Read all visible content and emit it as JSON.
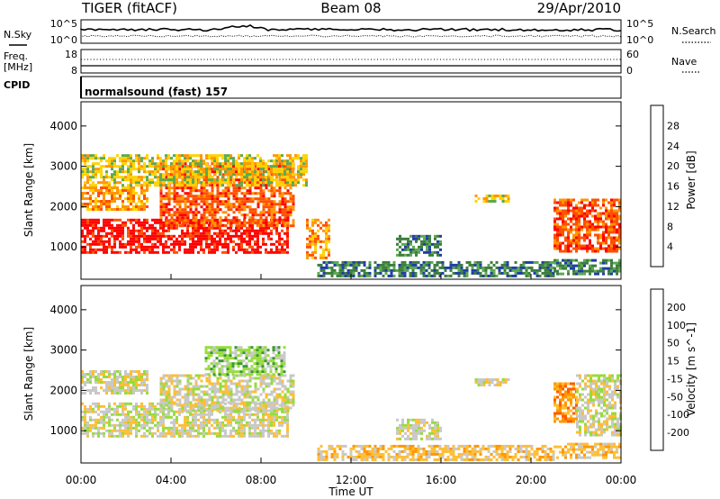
{
  "header": {
    "radar": "TIGER (fitACF)",
    "beam": "Beam 08",
    "date": "29/Apr/2010"
  },
  "summary_panels": {
    "nsky_label": "N.Sky",
    "nsearch_label": "N.Search",
    "nsky_ticks": [
      "10^5",
      "10^0"
    ],
    "nsearch_ticks": [
      "10^5",
      "10^0"
    ],
    "freq_label": "Freq.",
    "freq_unit": "[MHz]",
    "freq_ticks": [
      "18",
      "8"
    ],
    "nave_label": "Nave",
    "nave_ticks": [
      "60",
      "0"
    ],
    "cpid_label": "CPID",
    "cpid_value": "normalsound (fast) 157"
  },
  "chart_data": [
    {
      "type": "heatmap",
      "parameter": "power",
      "ylabel": "Slant Range [km]",
      "yticks": [
        1000,
        2000,
        3000,
        4000
      ],
      "ylim": [
        200,
        4600
      ],
      "xlim": [
        0,
        24
      ],
      "colorbar_label": "Power [dB]",
      "colorbar_ticks": [
        "28",
        "24",
        "20",
        "16",
        "12",
        "8",
        "4"
      ],
      "colorbar_colors": [
        "#0000ff",
        "#1e3ca8",
        "#3c7d3c",
        "#5aaa50",
        "#ffd200",
        "#ff9600",
        "#ff5000",
        "#ff0000"
      ],
      "regions": [
        {
          "t0": 0.0,
          "t1": 9.2,
          "r0": 850,
          "r1": 1700,
          "level": 7
        },
        {
          "t0": 0.0,
          "t1": 3.0,
          "r0": 1900,
          "r1": 2500,
          "level": 5
        },
        {
          "t0": 3.5,
          "t1": 9.5,
          "r0": 1500,
          "r1": 3100,
          "level": 6
        },
        {
          "t0": 0.0,
          "t1": 10.0,
          "r0": 2500,
          "r1": 3300,
          "level": 4
        },
        {
          "t0": 10.0,
          "t1": 11.0,
          "r0": 700,
          "r1": 1700,
          "level": 5
        },
        {
          "t0": 10.5,
          "t1": 21.0,
          "r0": 300,
          "r1": 650,
          "level": 2
        },
        {
          "t0": 14.0,
          "t1": 16.0,
          "r0": 800,
          "r1": 1300,
          "level": 2
        },
        {
          "t0": 17.5,
          "t1": 19.0,
          "r0": 2150,
          "r1": 2300,
          "level": 4
        },
        {
          "t0": 21.0,
          "t1": 24.0,
          "r0": 900,
          "r1": 2200,
          "level": 6
        },
        {
          "t0": 21.0,
          "t1": 24.0,
          "r0": 300,
          "r1": 700,
          "level": 2
        }
      ]
    },
    {
      "type": "heatmap",
      "parameter": "velocity",
      "xlabel": "Time UT",
      "ylabel": "Slant Range [km]",
      "xticks": [
        "00:00",
        "04:00",
        "08:00",
        "12:00",
        "16:00",
        "20:00",
        "00:00"
      ],
      "yticks": [
        1000,
        2000,
        3000,
        4000
      ],
      "ylim": [
        200,
        4600
      ],
      "xlim": [
        0,
        24
      ],
      "colorbar_label": "Velocity [m s^-1]",
      "colorbar_ticks": [
        "200",
        "100",
        "50",
        "15",
        "-15",
        "-50",
        "-100",
        "-200"
      ],
      "colorbar_colors": [
        "#ff0000",
        "#ff5a00",
        "#ff9600",
        "#ffbe32",
        "#c8c8c8",
        "#96dc3c",
        "#3c9632",
        "#1e6ea0",
        "#0000ff"
      ],
      "regions": [
        {
          "t0": 0.0,
          "t1": 9.2,
          "r0": 850,
          "r1": 1700,
          "level": 4
        },
        {
          "t0": 0.0,
          "t1": 3.0,
          "r0": 1900,
          "r1": 2500,
          "level": 4
        },
        {
          "t0": 3.5,
          "t1": 9.5,
          "r0": 1500,
          "r1": 2400,
          "level": 4
        },
        {
          "t0": 5.5,
          "t1": 9.0,
          "r0": 2400,
          "r1": 3100,
          "level": 5
        },
        {
          "t0": 10.5,
          "t1": 21.0,
          "r0": 300,
          "r1": 650,
          "level": 3
        },
        {
          "t0": 14.0,
          "t1": 16.0,
          "r0": 800,
          "r1": 1300,
          "level": 4
        },
        {
          "t0": 17.5,
          "t1": 19.0,
          "r0": 2150,
          "r1": 2300,
          "level": 4
        },
        {
          "t0": 21.0,
          "t1": 22.0,
          "r0": 1200,
          "r1": 2200,
          "level": 2
        },
        {
          "t0": 22.0,
          "t1": 24.0,
          "r0": 900,
          "r1": 2400,
          "level": 4
        },
        {
          "t0": 21.0,
          "t1": 24.0,
          "r0": 300,
          "r1": 700,
          "level": 3
        }
      ]
    }
  ]
}
